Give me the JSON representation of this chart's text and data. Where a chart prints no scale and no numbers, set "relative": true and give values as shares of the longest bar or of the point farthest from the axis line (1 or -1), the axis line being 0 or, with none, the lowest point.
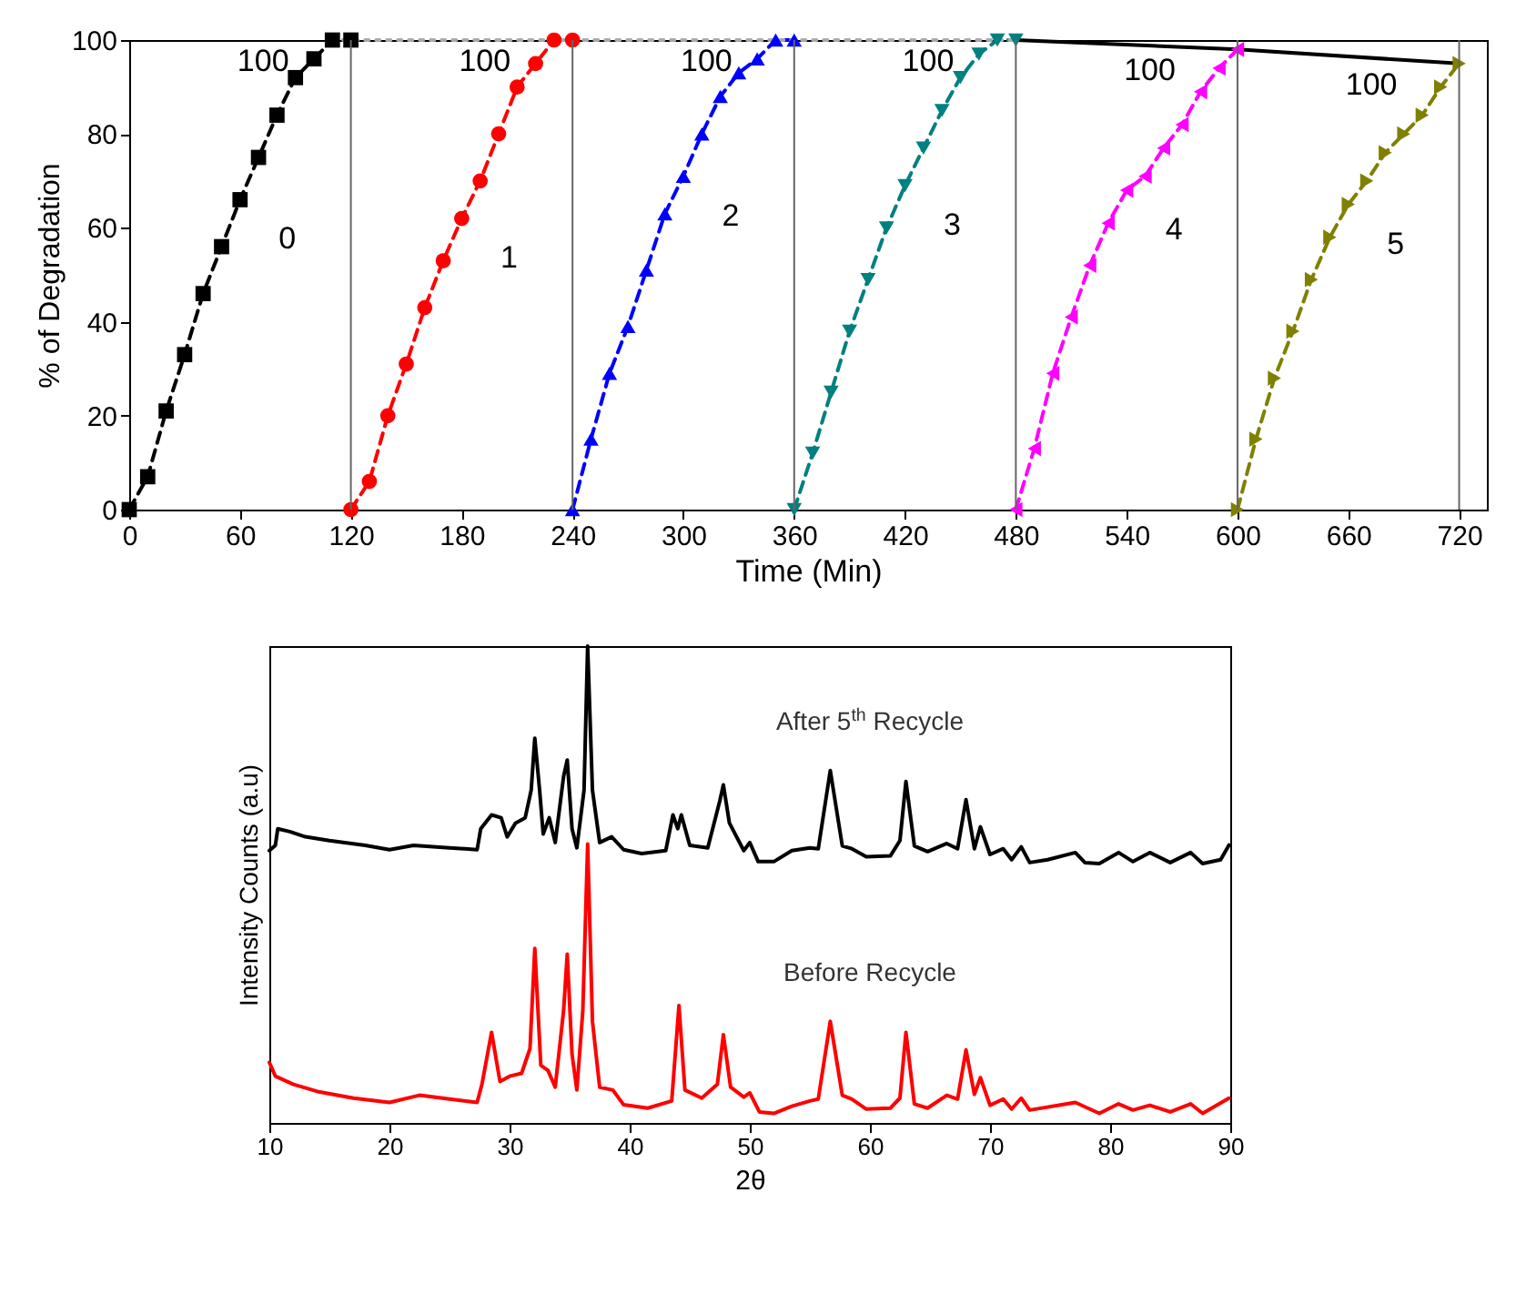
{
  "chart_data": [
    {
      "type": "line",
      "xlabel": "Time (Min)",
      "ylabel": "% of Degradation",
      "xlim": [
        0,
        735
      ],
      "xticks": [
        0,
        60,
        120,
        180,
        240,
        300,
        360,
        420,
        480,
        540,
        600,
        660,
        720
      ],
      "ylim": [
        0,
        100
      ],
      "yticks": [
        0,
        20,
        40,
        60,
        80,
        100
      ],
      "grid": false,
      "series": [
        {
          "name": "0",
          "color": "#000000",
          "marker": "square",
          "line_style": "dashed",
          "x": [
            0,
            10,
            20,
            30,
            40,
            50,
            60,
            70,
            80,
            90,
            100,
            110,
            120
          ],
          "values": [
            0,
            7,
            21,
            33,
            46,
            56,
            66,
            75,
            84,
            92,
            96,
            100,
            100
          ]
        },
        {
          "name": "1",
          "color": "#ff0000",
          "marker": "circle",
          "line_style": "dashed",
          "x": [
            120,
            130,
            140,
            150,
            160,
            170,
            180,
            190,
            200,
            210,
            220,
            230,
            240
          ],
          "values": [
            0,
            6,
            20,
            31,
            43,
            53,
            62,
            70,
            80,
            90,
            95,
            100,
            100
          ]
        },
        {
          "name": "2",
          "color": "#0000ff",
          "marker": "triangle",
          "line_style": "dashed",
          "x": [
            240,
            250,
            260,
            270,
            280,
            290,
            300,
            310,
            320,
            330,
            340,
            350,
            360
          ],
          "values": [
            0,
            15,
            29,
            39,
            51,
            63,
            71,
            80,
            88,
            93,
            96,
            100,
            100
          ]
        },
        {
          "name": "3",
          "color": "#008080",
          "marker": "triangle",
          "line_style": "dashed",
          "x": [
            360,
            370,
            380,
            390,
            400,
            410,
            420,
            430,
            440,
            450,
            460,
            470,
            480
          ],
          "values": [
            0,
            12,
            25,
            38,
            49,
            60,
            69,
            77,
            85,
            92,
            97,
            100,
            100
          ]
        },
        {
          "name": "4",
          "color": "#ff00ff",
          "marker": "triangle",
          "line_style": "dashed",
          "x": [
            480,
            490,
            500,
            510,
            520,
            530,
            540,
            550,
            560,
            570,
            580,
            590,
            600
          ],
          "values": [
            0,
            13,
            29,
            41,
            52,
            61,
            68,
            71,
            77,
            82,
            89,
            94,
            98
          ]
        },
        {
          "name": "5",
          "color": "#808000",
          "marker": "triangle",
          "line_style": "dashed",
          "x": [
            600,
            610,
            620,
            630,
            640,
            650,
            660,
            670,
            680,
            690,
            700,
            710,
            720
          ],
          "values": [
            0,
            15,
            28,
            38,
            49,
            58,
            65,
            70,
            76,
            80,
            84,
            90,
            95
          ]
        },
        {
          "color": "#000000",
          "marker": "none",
          "line_style": "solid",
          "x": [
            480,
            600,
            720
          ],
          "values": [
            100,
            98,
            95
          ]
        },
        {
          "color": "#aaaaaa",
          "marker": "none",
          "line_style": "dotted",
          "x": [
            110,
            480
          ],
          "values": [
            100,
            100
          ]
        }
      ],
      "ref_lines": [
        {
          "axis": "x",
          "value": 120,
          "color": "#666666"
        },
        {
          "axis": "x",
          "value": 240,
          "color": "#666666"
        },
        {
          "axis": "x",
          "value": 360,
          "color": "#666666"
        },
        {
          "axis": "x",
          "value": 480,
          "color": "#666666"
        },
        {
          "axis": "x",
          "value": 600,
          "color": "#666666"
        },
        {
          "axis": "x",
          "value": 720,
          "color": "#666666"
        }
      ],
      "annotations": [
        {
          "text": "100",
          "x": 120,
          "y": 100
        },
        {
          "text": "100",
          "x": 240,
          "y": 100
        },
        {
          "text": "100",
          "x": 360,
          "y": 100
        },
        {
          "text": "100",
          "x": 480,
          "y": 100
        },
        {
          "text": "100",
          "x": 600,
          "y": 98
        },
        {
          "text": "100",
          "x": 720,
          "y": 95
        }
      ]
    },
    {
      "type": "line",
      "relative": true,
      "xlabel": "2θ",
      "ylabel": "Intensity Counts (a.u)",
      "xlim": [
        10,
        90
      ],
      "xticks": [
        10,
        20,
        30,
        40,
        50,
        60,
        70,
        80,
        90
      ],
      "tick_labels": "x",
      "series": [
        {
          "name": "After 5$^{th}$ Recycle",
          "color": "#000000",
          "x": [
            10,
            10.5,
            10.7,
            11.7,
            13,
            15,
            18,
            20,
            22,
            25,
            27.3,
            27.6,
            28.5,
            29.3,
            29.8,
            30.5,
            31.3,
            31.8,
            32.1,
            32.5,
            32.8,
            33.3,
            33.8,
            34.5,
            34.8,
            35.2,
            35.6,
            36.2,
            36.5,
            36.9,
            37.5,
            38.5,
            39.5,
            41,
            43,
            43.6,
            44,
            44.3,
            45,
            46.5,
            47.5,
            47.8,
            48.3,
            49.5,
            50,
            50.7,
            52,
            53.5,
            55,
            55.7,
            56.7,
            57.7,
            58.5,
            59.7,
            61.7,
            62.5,
            63,
            63.7,
            64.8,
            66.4,
            67.3,
            68,
            68.7,
            69.2,
            70,
            71.1,
            71.8,
            72.6,
            73.3,
            74.8,
            77.1,
            77.9,
            79.1,
            80.7,
            81.9,
            83.3,
            85,
            86.7,
            87.7,
            89.2,
            89.9
          ],
          "values": [
            0.571,
            0.582,
            0.617,
            0.611,
            0.6,
            0.592,
            0.582,
            0.573,
            0.582,
            0.577,
            0.573,
            0.617,
            0.646,
            0.64,
            0.6,
            0.629,
            0.64,
            0.698,
            0.807,
            0.698,
            0.606,
            0.64,
            0.588,
            0.727,
            0.761,
            0.617,
            0.577,
            0.698,
            1,
            0.698,
            0.588,
            0.6,
            0.573,
            0.565,
            0.571,
            0.646,
            0.617,
            0.646,
            0.582,
            0.577,
            0.675,
            0.709,
            0.629,
            0.571,
            0.588,
            0.548,
            0.548,
            0.571,
            0.577,
            0.575,
            0.739,
            0.581,
            0.575,
            0.558,
            0.56,
            0.592,
            0.716,
            0.581,
            0.569,
            0.586,
            0.575,
            0.678,
            0.575,
            0.621,
            0.563,
            0.575,
            0.552,
            0.579,
            0.546,
            0.552,
            0.567,
            0.546,
            0.544,
            0.567,
            0.548,
            0.567,
            0.546,
            0.567,
            0.544,
            0.552,
            0.583
          ]
        },
        {
          "name": "Before Recycle",
          "color": "#ff0000",
          "x": [
            10,
            10.5,
            12,
            14,
            17,
            20,
            22.5,
            25,
            27.3,
            27.7,
            28.5,
            29.2,
            30,
            31,
            31.7,
            32.1,
            32.6,
            33.2,
            33.8,
            34.5,
            34.8,
            35.2,
            35.6,
            36.1,
            36.5,
            36.9,
            37.5,
            38.6,
            39.5,
            41.5,
            43.5,
            44.1,
            44.6,
            46,
            47.3,
            47.8,
            48.4,
            49.5,
            50,
            50.8,
            52,
            53.5,
            55,
            55.7,
            56.7,
            57.7,
            58.5,
            59.7,
            61.7,
            62.5,
            63,
            63.7,
            64.8,
            66.4,
            67.3,
            68,
            68.7,
            69.2,
            70,
            71.1,
            71.8,
            72.6,
            73.3,
            77.1,
            79.1,
            80.7,
            81.9,
            83.3,
            85,
            86.7,
            87.7,
            89.9
          ],
          "values": [
            0.127,
            0.098,
            0.081,
            0.066,
            0.052,
            0.043,
            0.058,
            0.05,
            0.043,
            0.081,
            0.19,
            0.087,
            0.098,
            0.104,
            0.156,
            0.366,
            0.121,
            0.11,
            0.075,
            0.236,
            0.354,
            0.144,
            0.069,
            0.236,
            0.585,
            0.213,
            0.075,
            0.069,
            0.038,
            0.031,
            0.046,
            0.246,
            0.069,
            0.052,
            0.081,
            0.185,
            0.075,
            0.054,
            0.063,
            0.023,
            0.02,
            0.035,
            0.046,
            0.05,
            0.213,
            0.058,
            0.05,
            0.029,
            0.031,
            0.052,
            0.19,
            0.04,
            0.031,
            0.058,
            0.05,
            0.153,
            0.06,
            0.095,
            0.037,
            0.05,
            0.029,
            0.052,
            0.027,
            0.043,
            0.02,
            0.04,
            0.027,
            0.037,
            0.023,
            0.04,
            0.02,
            0.052
          ]
        }
      ]
    }
  ]
}
